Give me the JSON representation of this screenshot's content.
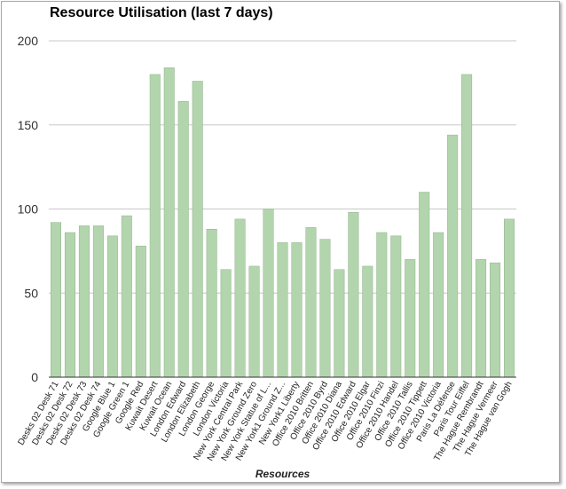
{
  "chart_data": {
    "type": "bar",
    "title": "Resource Utilisation (last 7 days)",
    "xlabel": "Resources",
    "ylabel": "",
    "ylim": [
      0,
      200
    ],
    "yticks": [
      0,
      50,
      100,
      150,
      200
    ],
    "grid": true,
    "legend": "none",
    "bar_color": "#b3d5ad",
    "bar_stroke": "#8fb38a",
    "categories": [
      "Desks 02 Desk 71",
      "Desks 02 Desk 72",
      "Desks 02 Desk 73",
      "Desks 02 Desk 74",
      "Google Blue 1",
      "Google Green 1",
      "Google Red",
      "Kuwait Desert",
      "Kuwait Ocean",
      "London Edward",
      "London Elizabeth",
      "London George",
      "London Victoria",
      "New York Central Park",
      "New York Ground Zero",
      "New York Statue of L...",
      "New York1 Ground Z...",
      "New York1 Liberty",
      "Office 2010 Britten",
      "Office 2010 Byrd",
      "Office 2010 Diana",
      "Office 2010 Edward",
      "Office 2010 Elgar",
      "Office 2010 Finzi",
      "Office 2010 Handel",
      "Office 2010 Tallis",
      "Office 2010 Tippett",
      "Office 2010 Victoria",
      "Paris La Défense",
      "Paris Tour Eiffel",
      "The Hague Rembrandt",
      "The Hague Vermeer",
      "The Hague van Gogh"
    ],
    "values": [
      92,
      86,
      90,
      90,
      84,
      96,
      78,
      180,
      184,
      164,
      176,
      88,
      64,
      94,
      66,
      100,
      80,
      80,
      89,
      82,
      64,
      98,
      66,
      86,
      84,
      70,
      110,
      86,
      144,
      180,
      70,
      68,
      94
    ]
  }
}
